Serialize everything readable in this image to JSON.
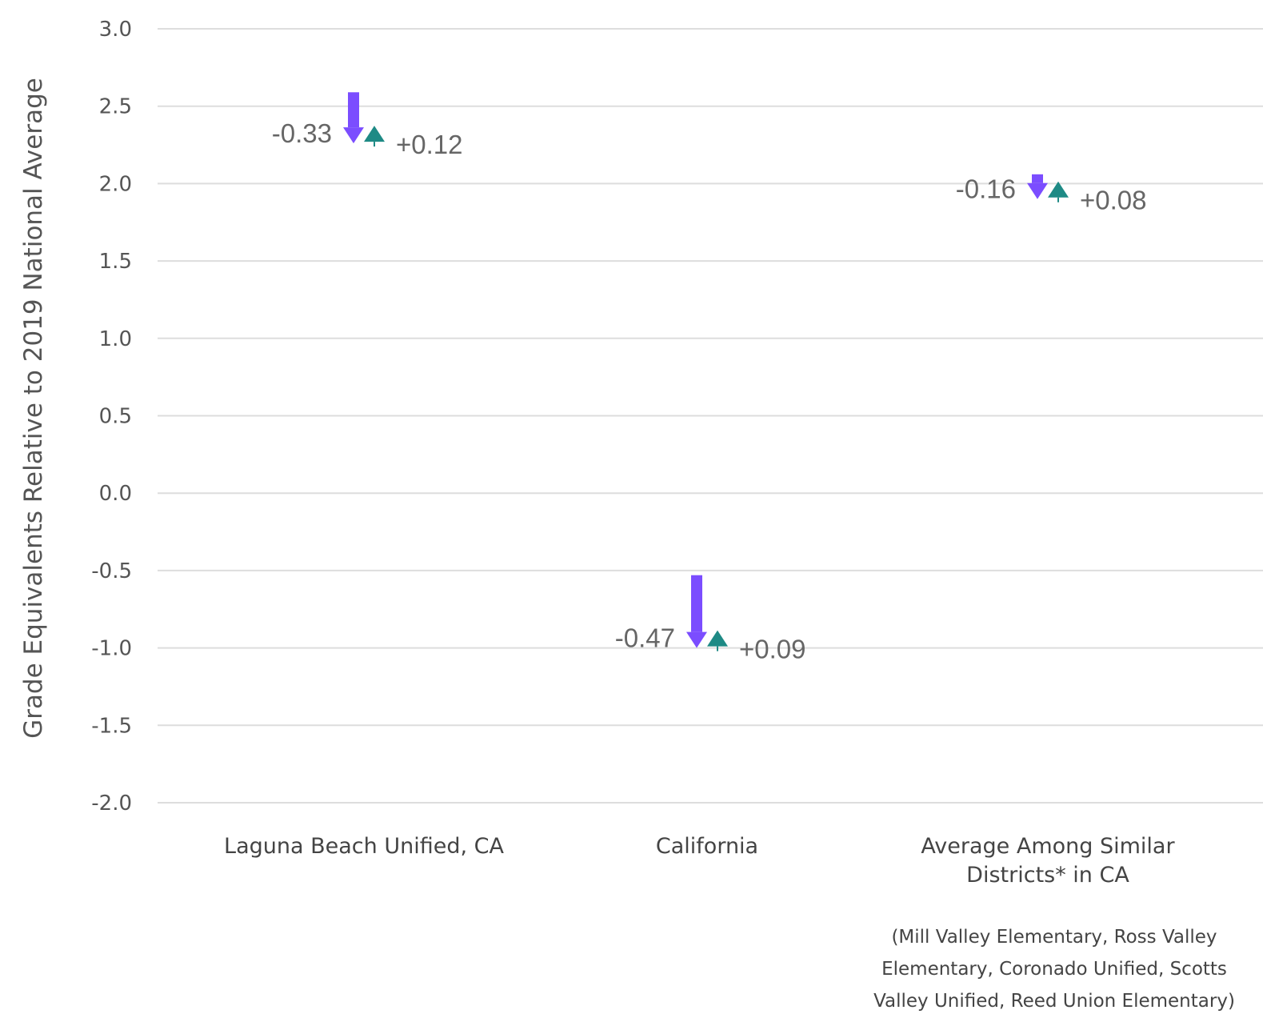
{
  "chart_data": {
    "type": "arrow-change",
    "ylabel": "Grade Equivalents Relative to 2019 National Average",
    "xlabel": "",
    "ylim": [
      -2.0,
      3.0
    ],
    "yticks": [
      "3.0",
      "2.5",
      "2.0",
      "1.5",
      "1.0",
      "0.5",
      "0.0",
      "-0.5",
      "-1.0",
      "-1.5",
      "-2.0"
    ],
    "grid": true,
    "categories": [
      [
        "Laguna Beach Unified, CA"
      ],
      [
        "California"
      ],
      [
        "Average Among Similar",
        "Districts* in CA"
      ]
    ],
    "points": [
      {
        "start": 2.59,
        "decline": -0.33,
        "decline_label": "-0.33",
        "recovery": 0.12,
        "recovery_label": "+0.12"
      },
      {
        "start": -0.53,
        "decline": -0.47,
        "decline_label": "-0.47",
        "recovery": 0.09,
        "recovery_label": "+0.09"
      },
      {
        "start": 2.06,
        "decline": -0.16,
        "decline_label": "-0.16",
        "recovery": 0.08,
        "recovery_label": "+0.08"
      }
    ],
    "footnote": [
      "(Mill Valley Elementary, Ross Valley",
      "Elementary, Coronado Unified, Scotts",
      "Valley Unified, Reed Union Elementary)"
    ],
    "colors": {
      "decline": "#7b4dff",
      "recovery": "#1e8a85"
    }
  }
}
